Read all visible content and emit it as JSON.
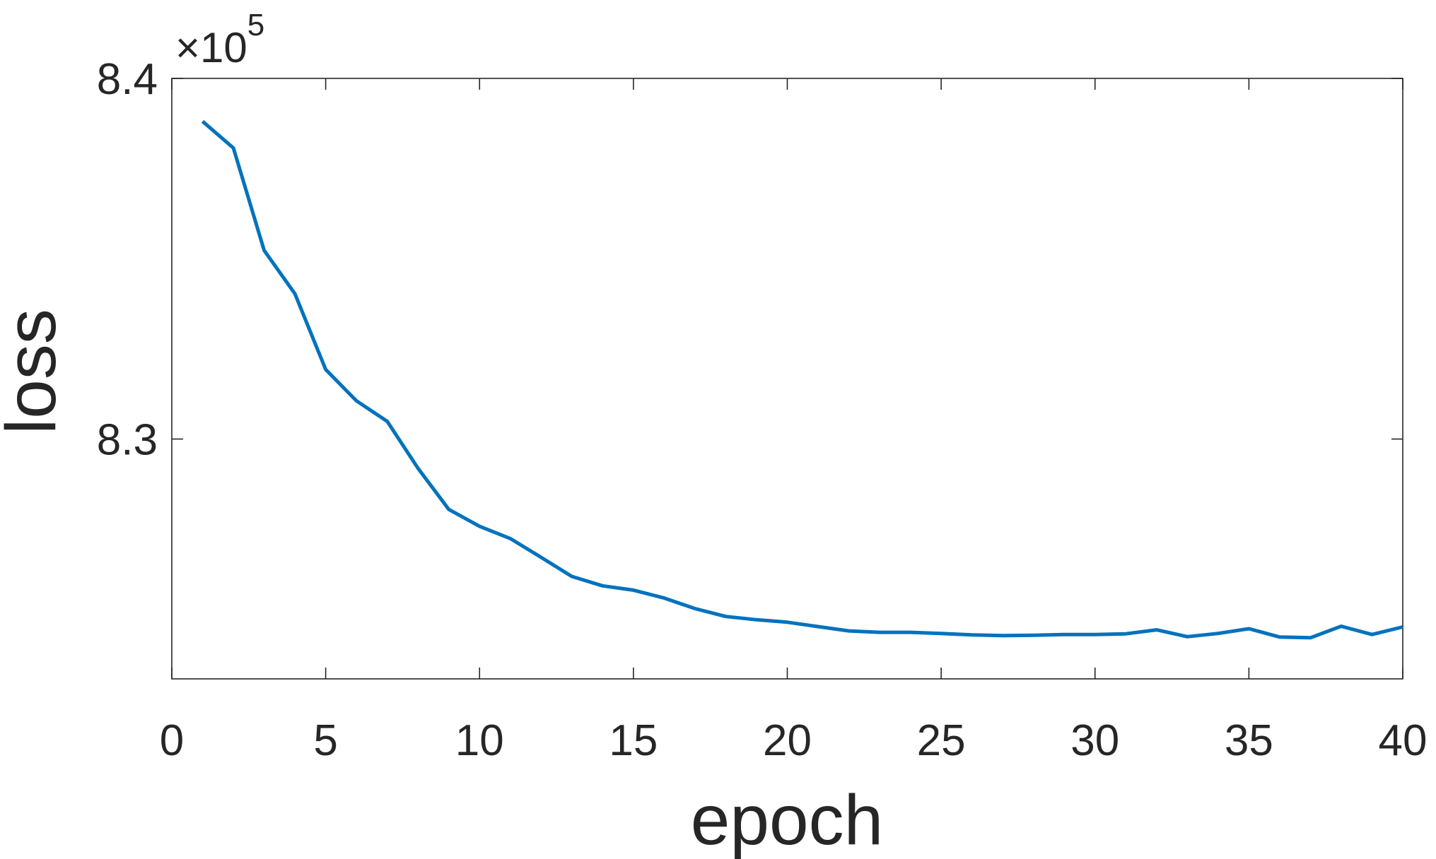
{
  "chart_data": {
    "type": "line",
    "title": "",
    "xlabel": "epoch",
    "ylabel": "loss",
    "xlim": [
      0,
      40
    ],
    "ylim": [
      8.2335,
      8.4
    ],
    "x_ticks": [
      0,
      5,
      10,
      15,
      20,
      25,
      30,
      35,
      40
    ],
    "x_tick_labels": [
      "0",
      "5",
      "10",
      "15",
      "20",
      "25",
      "30",
      "35",
      "40"
    ],
    "y_ticks": [
      8.3,
      8.4
    ],
    "y_tick_labels": [
      "8.3",
      "8.4"
    ],
    "y_exponent": {
      "prefix": "×10",
      "power": "5"
    },
    "grid": false,
    "box": true,
    "series": [
      {
        "color": "#0072BD",
        "x": [
          1,
          2,
          3,
          4,
          5,
          6,
          7,
          8,
          9,
          10,
          11,
          12,
          13,
          14,
          15,
          16,
          17,
          18,
          19,
          20,
          21,
          22,
          23,
          24,
          25,
          26,
          27,
          28,
          29,
          30,
          31,
          32,
          33,
          34,
          35,
          36,
          37,
          38,
          39,
          40
        ],
        "y": [
          8.3881,
          8.3807,
          8.3523,
          8.3403,
          8.3193,
          8.3106,
          8.3049,
          8.2919,
          8.2805,
          8.2758,
          8.2724,
          8.2672,
          8.2619,
          8.2593,
          8.2581,
          8.2559,
          8.253,
          8.2508,
          8.2499,
          8.2492,
          8.248,
          8.2468,
          8.2464,
          8.2464,
          8.2461,
          8.2457,
          8.2455,
          8.2456,
          8.2458,
          8.2458,
          8.246,
          8.2471,
          8.2452,
          8.2461,
          8.2474,
          8.2451,
          8.2449,
          8.2481,
          8.2458,
          8.2479
        ]
      }
    ]
  }
}
